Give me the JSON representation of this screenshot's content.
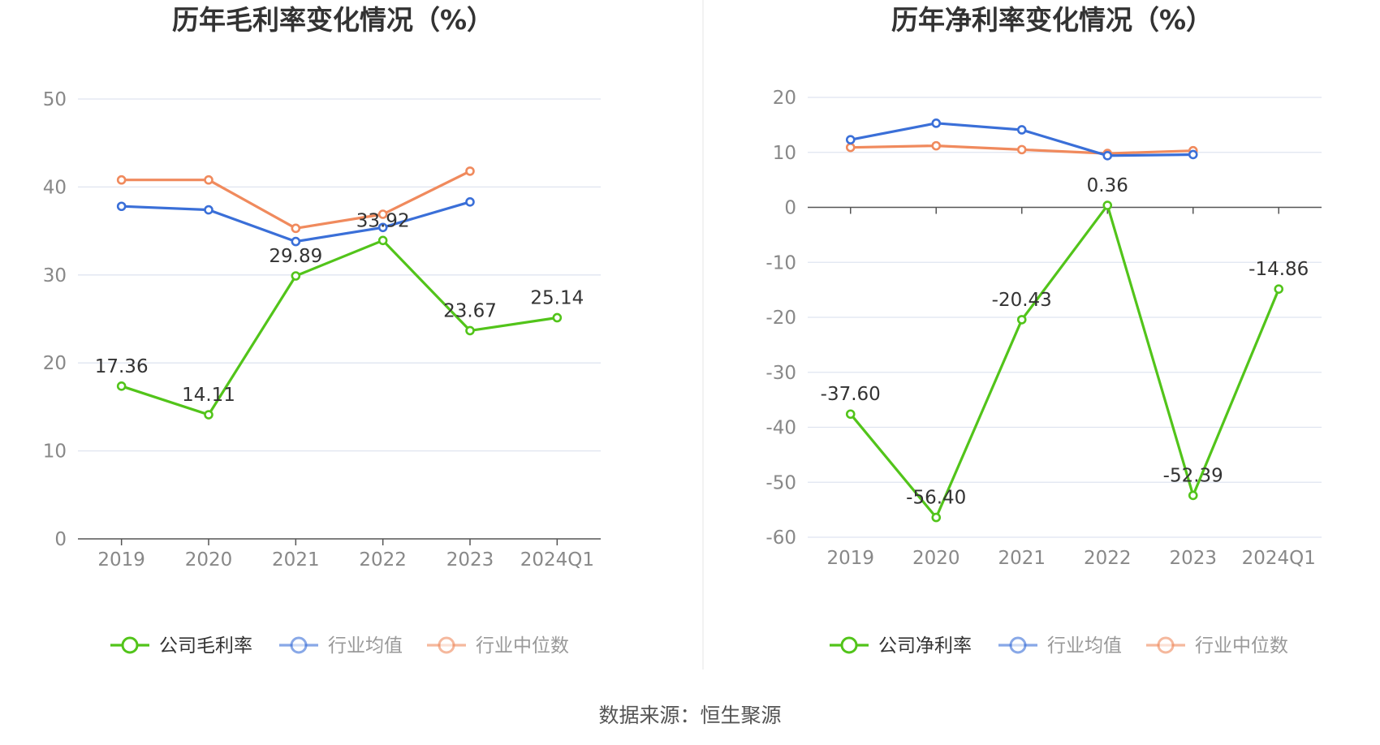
{
  "colors": {
    "company": "#52c41a",
    "avg": "#3a6fd8",
    "median": "#f08a5d",
    "grid": "#dfe4f0",
    "axis": "#555555"
  },
  "source_text": "数据来源：恒生聚源",
  "chart_data": [
    {
      "type": "line",
      "title": "历年毛利率变化情况（%）",
      "categories": [
        "2019",
        "2020",
        "2021",
        "2022",
        "2023",
        "2024Q1"
      ],
      "ylim": [
        0,
        50
      ],
      "yticks": [
        0,
        10,
        20,
        30,
        40,
        50
      ],
      "grid": true,
      "legend_position": "bottom",
      "series": [
        {
          "name": "公司毛利率",
          "key": "company",
          "values": [
            17.36,
            14.11,
            29.89,
            33.92,
            23.67,
            25.14
          ],
          "labels": [
            "17.36",
            "14.11",
            "29.89",
            "33.92",
            "23.67",
            "25.14"
          ]
        },
        {
          "name": "行业均值",
          "key": "avg",
          "values": [
            37.8,
            37.4,
            33.8,
            35.4,
            38.3,
            null
          ]
        },
        {
          "name": "行业中位数",
          "key": "median",
          "values": [
            40.8,
            40.8,
            35.3,
            36.9,
            41.8,
            null
          ]
        }
      ]
    },
    {
      "type": "line",
      "title": "历年净利率变化情况（%）",
      "categories": [
        "2019",
        "2020",
        "2021",
        "2022",
        "2023",
        "2024Q1"
      ],
      "ylim": [
        -60,
        20
      ],
      "yticks": [
        -60,
        -50,
        -40,
        -30,
        -20,
        -10,
        0,
        10,
        20
      ],
      "grid": true,
      "legend_position": "bottom",
      "series": [
        {
          "name": "公司净利率",
          "key": "company",
          "values": [
            -37.6,
            -56.4,
            -20.43,
            0.36,
            -52.39,
            -14.86
          ],
          "labels": [
            "-37.60",
            "-56.40",
            "-20.43",
            "0.36",
            "-52.39",
            "-14.86"
          ]
        },
        {
          "name": "行业均值",
          "key": "avg",
          "values": [
            12.3,
            15.3,
            14.1,
            9.4,
            9.6,
            null
          ]
        },
        {
          "name": "行业中位数",
          "key": "median",
          "values": [
            10.9,
            11.2,
            10.5,
            9.8,
            10.3,
            null
          ]
        }
      ]
    }
  ]
}
